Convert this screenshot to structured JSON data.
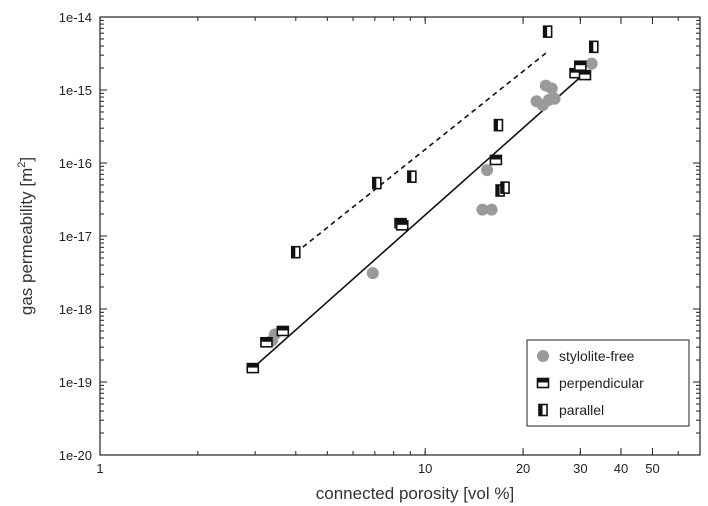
{
  "chart_data": {
    "type": "scatter",
    "xscale": "log",
    "yscale": "log",
    "xlim": [
      1,
      70
    ],
    "ylim": [
      1e-20,
      1e-14
    ],
    "xlabel": "connected porosity [vol %]",
    "ylabel_main": "gas permeability [m",
    "ylabel_sup": "2",
    "ylabel_end": "]",
    "x_ticks": [
      {
        "value": 1,
        "label": "1"
      },
      {
        "value": 10,
        "label": "10"
      },
      {
        "value": 20,
        "label": "20"
      },
      {
        "value": 30,
        "label": "30"
      },
      {
        "value": 40,
        "label": "40"
      },
      {
        "value": 50,
        "label": "50"
      }
    ],
    "y_ticks": [
      {
        "value": 1e-20,
        "label": "1e-20"
      },
      {
        "value": 1e-19,
        "label": "1e-19"
      },
      {
        "value": 1e-18,
        "label": "1e-18"
      },
      {
        "value": 1e-17,
        "label": "1e-17"
      },
      {
        "value": 1e-16,
        "label": "1e-16"
      },
      {
        "value": 1e-15,
        "label": "1e-15"
      },
      {
        "value": 1e-14,
        "label": "1e-14"
      }
    ],
    "legend_position": "bottom-right",
    "series": [
      {
        "name": "stylolite-free",
        "marker": "circle",
        "color": "#9a9a9a",
        "points": [
          [
            3.45,
            4.5e-19
          ],
          [
            3.38,
            3.7e-19
          ],
          [
            6.9,
            3.1e-18
          ],
          [
            15.0,
            2.3e-17
          ],
          [
            16.0,
            2.3e-17
          ],
          [
            15.5,
            8e-17
          ],
          [
            22.0,
            7e-16
          ],
          [
            23.0,
            6.2e-16
          ],
          [
            24.0,
            7.3e-16
          ],
          [
            25.0,
            7.6e-16
          ],
          [
            23.5,
            1.15e-15
          ],
          [
            24.5,
            1.05e-15
          ],
          [
            32.5,
            2.3e-15
          ]
        ]
      },
      {
        "name": "perpendicular",
        "marker": "rect-perp",
        "color": "#111111",
        "points": [
          [
            2.95,
            1.55e-19
          ],
          [
            3.25,
            3.5e-19
          ],
          [
            3.65,
            5e-19
          ],
          [
            8.4,
            1.5e-17
          ],
          [
            8.5,
            1.4e-17
          ],
          [
            16.5,
            1.1e-16
          ],
          [
            29.0,
            1.7e-15
          ],
          [
            30.0,
            2.15e-15
          ],
          [
            31.0,
            1.6e-15
          ]
        ]
      },
      {
        "name": "parallel",
        "marker": "rect-para",
        "color": "#111111",
        "points": [
          [
            4.0,
            6e-18
          ],
          [
            7.1,
            5.3e-17
          ],
          [
            9.1,
            6.5e-17
          ],
          [
            16.8,
            3.3e-16
          ],
          [
            17.0,
            4.2e-17
          ],
          [
            17.6,
            4.6e-17
          ],
          [
            23.8,
            6.3e-15
          ],
          [
            33.0,
            3.9e-15
          ]
        ]
      }
    ],
    "fit_lines": [
      {
        "style": "solid",
        "from": [
          2.95,
          1.55e-19
        ],
        "to": [
          30.5,
          1.6e-15
        ]
      },
      {
        "style": "dashed",
        "from": [
          4.0,
          5.9e-18
        ],
        "to": [
          23.5,
          3.2e-15
        ]
      }
    ],
    "colors": {
      "axis": "#222222",
      "stylolite_free": "#9a9a9a",
      "markers": "#111111"
    }
  }
}
